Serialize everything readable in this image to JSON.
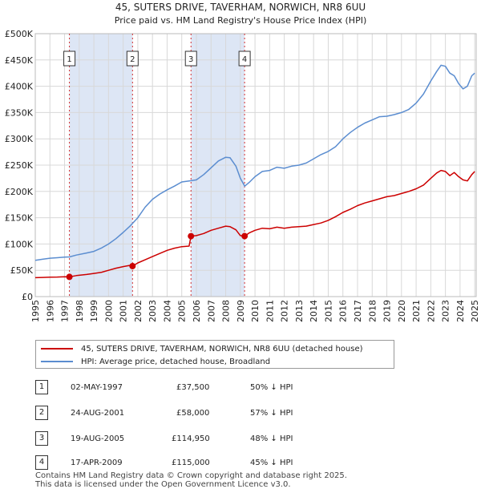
{
  "chart_data": {
    "type": "line",
    "title": "45, SUTERS DRIVE, TAVERHAM, NORWICH, NR8 6UU",
    "subtitle": "Price paid vs. HM Land Registry's House Price Index (HPI)",
    "xlim": [
      1995.0,
      2025.1
    ],
    "ylim": [
      0,
      500000
    ],
    "yticks": [
      0,
      50000,
      100000,
      150000,
      200000,
      250000,
      300000,
      350000,
      400000,
      450000,
      500000
    ],
    "ytick_labels": [
      "£0",
      "£50K",
      "£100K",
      "£150K",
      "£200K",
      "£250K",
      "£300K",
      "£350K",
      "£400K",
      "£450K",
      "£500K"
    ],
    "xticks": [
      1995,
      1996,
      1997,
      1998,
      1999,
      2000,
      2001,
      2002,
      2003,
      2004,
      2005,
      2006,
      2007,
      2008,
      2009,
      2010,
      2011,
      2012,
      2013,
      2014,
      2015,
      2016,
      2017,
      2018,
      2019,
      2020,
      2021,
      2022,
      2023,
      2024,
      2025
    ],
    "xtick_labels": [
      "1995",
      "1996",
      "1997",
      "1998",
      "1999",
      "2000",
      "2001",
      "2002",
      "2003",
      "2004",
      "2005",
      "2006",
      "2007",
      "2008",
      "2009",
      "2010",
      "2011",
      "2012",
      "2013",
      "2014",
      "2015",
      "2016",
      "2017",
      "2018",
      "2019",
      "2020",
      "2021",
      "2022",
      "2023",
      "2024",
      "2025"
    ],
    "grid": true,
    "series": [
      {
        "name": "45, SUTERS DRIVE, TAVERHAM, NORWICH, NR8 6UU (detached house)",
        "color": "#cc0000",
        "x": [
          1995.0,
          1995.5,
          1996.0,
          1996.5,
          1997.0,
          1997.33,
          1997.8,
          1998.5,
          1999.0,
          1999.5,
          2000.0,
          2000.5,
          2001.0,
          2001.4,
          2001.64,
          2002.0,
          2002.5,
          2003.0,
          2003.5,
          2004.0,
          2004.5,
          2005.0,
          2005.5,
          2005.63,
          2006.0,
          2006.5,
          2007.0,
          2007.5,
          2008.0,
          2008.3,
          2008.7,
          2009.0,
          2009.29,
          2009.6,
          2010.0,
          2010.5,
          2011.0,
          2011.5,
          2012.0,
          2012.5,
          2013.0,
          2013.5,
          2014.0,
          2014.5,
          2015.0,
          2015.5,
          2016.0,
          2016.5,
          2017.0,
          2017.5,
          2018.0,
          2018.5,
          2019.0,
          2019.5,
          2020.0,
          2020.5,
          2021.0,
          2021.5,
          2022.0,
          2022.4,
          2022.7,
          2023.0,
          2023.3,
          2023.6,
          2023.9,
          2024.2,
          2024.5,
          2024.8,
          2025.0
        ],
        "y": [
          36000,
          36500,
          37000,
          37200,
          37800,
          37500,
          40000,
          42000,
          44000,
          46000,
          50000,
          54000,
          57000,
          59000,
          58000,
          64000,
          70000,
          76000,
          82000,
          88000,
          92000,
          95000,
          96000,
          114950,
          116000,
          120000,
          126000,
          130000,
          134000,
          133000,
          127000,
          116000,
          115000,
          121000,
          126000,
          130000,
          129000,
          132000,
          130000,
          132000,
          133000,
          134000,
          137000,
          140000,
          145000,
          152000,
          160000,
          166000,
          173000,
          178000,
          182000,
          186000,
          190000,
          192000,
          196000,
          200000,
          205000,
          212000,
          225000,
          235000,
          240000,
          238000,
          230000,
          236000,
          228000,
          222000,
          220000,
          232000,
          238000
        ]
      },
      {
        "name": "HPI: Average price, detached house, Broadland",
        "color": "#5b8dd0",
        "x": [
          1995.0,
          1995.5,
          1996.0,
          1996.5,
          1997.0,
          1997.33,
          1997.8,
          1998.5,
          1999.0,
          1999.5,
          2000.0,
          2000.5,
          2001.0,
          2001.5,
          2002.0,
          2002.5,
          2003.0,
          2003.5,
          2004.0,
          2004.5,
          2005.0,
          2005.5,
          2006.0,
          2006.5,
          2007.0,
          2007.5,
          2008.0,
          2008.3,
          2008.7,
          2009.0,
          2009.3,
          2009.6,
          2010.0,
          2010.5,
          2011.0,
          2011.5,
          2012.0,
          2012.5,
          2013.0,
          2013.5,
          2014.0,
          2014.5,
          2015.0,
          2015.5,
          2016.0,
          2016.5,
          2017.0,
          2017.5,
          2018.0,
          2018.5,
          2019.0,
          2019.5,
          2020.0,
          2020.5,
          2021.0,
          2021.5,
          2022.0,
          2022.4,
          2022.7,
          2023.0,
          2023.3,
          2023.6,
          2023.9,
          2024.2,
          2024.5,
          2024.8,
          2025.0
        ],
        "y": [
          69000,
          71000,
          73000,
          74000,
          75000,
          75500,
          79000,
          83000,
          86000,
          92000,
          100000,
          110000,
          122000,
          135000,
          150000,
          170000,
          185000,
          195000,
          203000,
          210000,
          218000,
          220000,
          222000,
          232000,
          245000,
          258000,
          265000,
          264000,
          248000,
          225000,
          210000,
          217000,
          228000,
          238000,
          240000,
          246000,
          244000,
          248000,
          250000,
          254000,
          262000,
          270000,
          276000,
          285000,
          300000,
          312000,
          322000,
          330000,
          336000,
          342000,
          343000,
          346000,
          350000,
          356000,
          368000,
          385000,
          410000,
          428000,
          440000,
          438000,
          425000,
          420000,
          405000,
          395000,
          400000,
          420000,
          425000
        ]
      }
    ],
    "transactions": [
      {
        "num": "1",
        "date": 1997.33,
        "price": 37500
      },
      {
        "num": "2",
        "date": 2001.64,
        "price": 58000
      },
      {
        "num": "3",
        "date": 2005.63,
        "price": 114950
      },
      {
        "num": "4",
        "date": 2009.29,
        "price": 115000
      }
    ],
    "shaded_periods": [
      [
        1997.33,
        2001.64
      ],
      [
        2005.63,
        2009.29
      ]
    ]
  },
  "legend": {
    "property_label": "45, SUTERS DRIVE, TAVERHAM, NORWICH, NR8 6UU (detached house)",
    "hpi_label": "HPI: Average price, detached house, Broadland"
  },
  "table": [
    {
      "num": "1",
      "date": "02-MAY-1997",
      "price": "£37,500",
      "hpi": "50% ↓ HPI"
    },
    {
      "num": "2",
      "date": "24-AUG-2001",
      "price": "£58,000",
      "hpi": "57% ↓ HPI"
    },
    {
      "num": "3",
      "date": "19-AUG-2005",
      "price": "£114,950",
      "hpi": "48% ↓ HPI"
    },
    {
      "num": "4",
      "date": "17-APR-2009",
      "price": "£115,000",
      "hpi": "45% ↓ HPI"
    }
  ],
  "footer": {
    "line1": "Contains HM Land Registry data © Crown copyright and database right 2025.",
    "line2": "This data is licensed under the Open Government Licence v3.0."
  },
  "colors": {
    "property": "#cc0000",
    "hpi": "#5b8dd0",
    "shade": "#dde6f5",
    "grid": "#d8d8d8"
  }
}
